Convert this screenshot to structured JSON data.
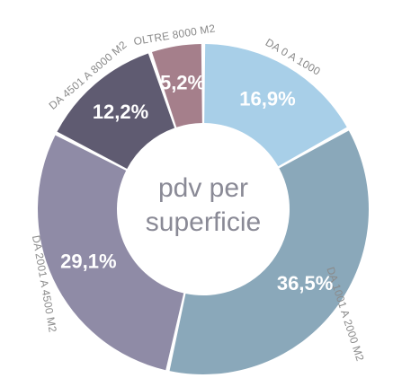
{
  "chart_data": {
    "type": "donut",
    "center_text": [
      "pdv per",
      "superficie"
    ],
    "categories": [
      "DA 0 A 1000",
      "DA 1001 A 2000 M2",
      "DA 2001 A 4500 M2",
      "DA 4501 A 8000 M2",
      "OLTRE 8000 M2"
    ],
    "values": [
      16.9,
      36.5,
      29.1,
      12.2,
      5.2
    ],
    "value_labels": [
      "16,9%",
      "36,5%",
      "29,1%",
      "12,2%",
      "5,2%"
    ],
    "colors": [
      "#a8cfe8",
      "#8aa8ba",
      "#8f8ba6",
      "#5f5b71",
      "#a57f8b"
    ]
  }
}
